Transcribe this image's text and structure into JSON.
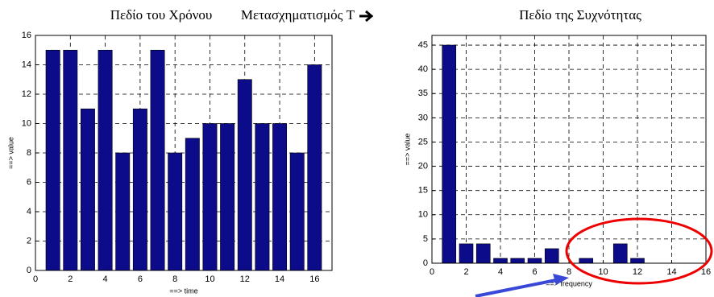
{
  "transform_label": "Μετασχηματισμός T",
  "chart_data": [
    {
      "type": "bar",
      "title": "Πεδίο του Χρόνου",
      "x_label": "==>  time",
      "y_label": "==> value",
      "x": [
        1,
        2,
        3,
        4,
        5,
        6,
        7,
        8,
        9,
        10,
        11,
        12,
        13,
        14,
        15,
        16
      ],
      "values": [
        15,
        15,
        11,
        15,
        8,
        11,
        15,
        8,
        9,
        10,
        10,
        13,
        10,
        10,
        8,
        14
      ],
      "color": "#0c0c8a",
      "xlim": [
        0,
        17
      ],
      "ylim": [
        0,
        16
      ],
      "xticks": [
        0,
        2,
        4,
        6,
        8,
        10,
        12,
        14,
        16
      ],
      "yticks": [
        0,
        2,
        4,
        6,
        8,
        10,
        12,
        14,
        16
      ],
      "grid": true
    },
    {
      "type": "bar",
      "title": "Πεδίο της Συχνότητας",
      "x_label": "==> frequency",
      "y_label": "==> value",
      "x": [
        1,
        2,
        3,
        4,
        5,
        6,
        7,
        8,
        9,
        10,
        11,
        12,
        13,
        14,
        15,
        16
      ],
      "values": [
        45,
        4,
        4,
        1,
        1,
        1,
        3,
        0,
        1,
        0,
        4,
        1,
        0,
        0,
        0,
        0
      ],
      "color": "#0c0c8a",
      "xlim": [
        0,
        16
      ],
      "ylim": [
        0,
        47
      ],
      "xticks": [
        0,
        2,
        4,
        6,
        8,
        10,
        12,
        14,
        16
      ],
      "yticks": [
        0,
        5,
        10,
        15,
        20,
        25,
        30,
        35,
        40,
        45
      ],
      "grid": true
    }
  ]
}
